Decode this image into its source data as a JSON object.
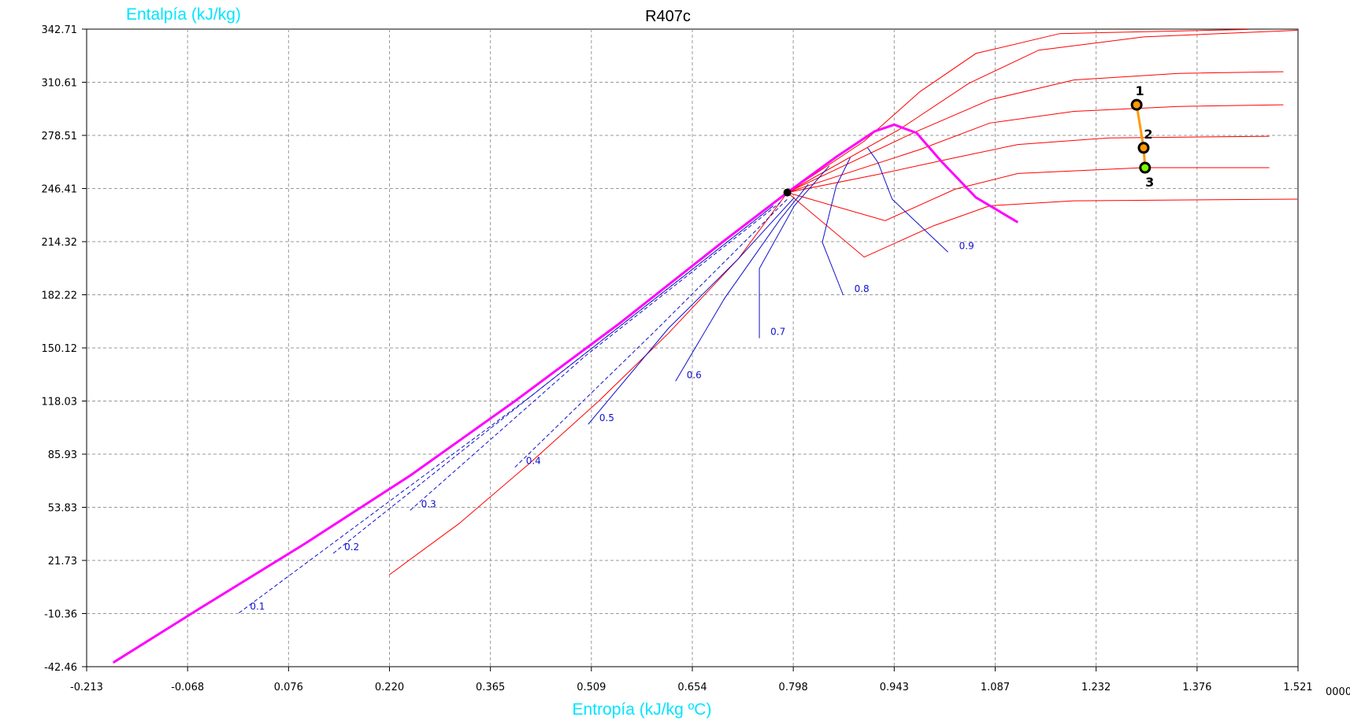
{
  "chart_data": {
    "type": "line",
    "title": "R407c",
    "xlabel": "Entropía (kJ/kg ºC)",
    "ylabel": "Entalpía (kJ/kg)",
    "xlim": [
      -0.213,
      1.521
    ],
    "ylim": [
      -42.46,
      342.71
    ],
    "x_ticks": [
      "-0.213",
      "-0.068",
      "0.076",
      "0.220",
      "0.365",
      "0.509",
      "0.654",
      "0.798",
      "0.943",
      "1.087",
      "1.232",
      "1.376",
      "1.521"
    ],
    "x_tick_suffix": "0000",
    "y_ticks": [
      "342.71",
      "310.61",
      "278.51",
      "246.41",
      "214.32",
      "182.22",
      "150.12",
      "118.03",
      "85.93",
      "53.83",
      "21.73",
      "-10.36",
      "-42.46"
    ],
    "grid": true,
    "colors": {
      "saturation": "#ff00ff",
      "isobar": "#ff0000",
      "quality": "#1010cc",
      "cycle": "#ff9900",
      "axis_title": "#00e5ff"
    },
    "saturation_curve": [
      [
        -0.175,
        -40.0
      ],
      [
        -0.05,
        -7.0
      ],
      [
        0.1,
        32.0
      ],
      [
        0.25,
        73.0
      ],
      [
        0.4,
        118.0
      ],
      [
        0.55,
        165.0
      ],
      [
        0.7,
        215.0
      ],
      [
        0.79,
        244.0
      ],
      [
        0.86,
        265.5
      ],
      [
        0.915,
        281.0
      ],
      [
        0.943,
        285.0
      ],
      [
        0.975,
        280.0
      ],
      [
        1.01,
        263.0
      ],
      [
        1.06,
        241.0
      ],
      [
        1.12,
        226.0
      ]
    ],
    "critical_point": [
      0.79,
      244.0
    ],
    "isobars": [
      [
        [
          0.79,
          244.0
        ],
        [
          0.9,
          275.0
        ],
        [
          0.98,
          305.0
        ],
        [
          1.06,
          328.0
        ],
        [
          1.18,
          340.0
        ],
        [
          1.45,
          342.5
        ]
      ],
      [
        [
          0.79,
          244.0
        ],
        [
          0.95,
          282.0
        ],
        [
          1.05,
          310.0
        ],
        [
          1.15,
          330.0
        ],
        [
          1.3,
          338.0
        ],
        [
          1.52,
          342.0
        ]
      ],
      [
        [
          0.79,
          244.0
        ],
        [
          0.97,
          280.0
        ],
        [
          1.08,
          300.0
        ],
        [
          1.2,
          312.0
        ],
        [
          1.35,
          316.0
        ],
        [
          1.5,
          317.0
        ]
      ],
      [
        [
          0.79,
          244.0
        ],
        [
          0.98,
          270.0
        ],
        [
          1.08,
          286.0
        ],
        [
          1.2,
          293.0
        ],
        [
          1.35,
          296.0
        ],
        [
          1.5,
          297.0
        ]
      ],
      [
        [
          0.79,
          244.0
        ],
        [
          0.92,
          255.0
        ],
        [
          1.03,
          265.0
        ],
        [
          1.12,
          273.0
        ],
        [
          1.25,
          277.0
        ],
        [
          1.48,
          278.0
        ]
      ],
      [
        [
          0.79,
          244.0
        ],
        [
          0.93,
          227.0
        ],
        [
          1.03,
          246.0
        ],
        [
          1.12,
          255.5
        ],
        [
          1.3,
          259.0
        ],
        [
          1.48,
          259.0
        ]
      ],
      [
        [
          0.79,
          244.0
        ],
        [
          0.9,
          205.0
        ],
        [
          1.0,
          224.0
        ],
        [
          1.08,
          236.0
        ],
        [
          1.2,
          239.0
        ],
        [
          1.52,
          240.0
        ]
      ],
      [
        [
          0.79,
          244.0
        ],
        [
          0.72,
          204.0
        ],
        [
          0.62,
          159.0
        ],
        [
          0.52,
          118.0
        ],
        [
          0.42,
          80.0
        ],
        [
          0.32,
          44.0
        ],
        [
          0.22,
          13.0
        ]
      ]
    ],
    "quality_lines": [
      {
        "label": "0.1",
        "points": [
          [
            0.005,
            -10.0
          ],
          [
            0.42,
            120.0
          ],
          [
            0.77,
            236.0
          ]
        ]
      },
      {
        "label": "0.2",
        "points": [
          [
            0.14,
            26.0
          ],
          [
            0.45,
            130.0
          ],
          [
            0.77,
            236.0
          ]
        ]
      },
      {
        "label": "0.3",
        "points": [
          [
            0.25,
            52.0
          ],
          [
            0.5,
            145.0
          ],
          [
            0.78,
            238.0
          ]
        ]
      },
      {
        "label": "0.4",
        "points": [
          [
            0.4,
            78.0
          ],
          [
            0.6,
            160.0
          ],
          [
            0.79,
            240.0
          ]
        ]
      },
      {
        "label": "0.5",
        "points": [
          [
            0.505,
            104.0
          ],
          [
            0.62,
            162.0
          ],
          [
            0.72,
            204.0
          ],
          [
            0.8,
            241.0
          ]
        ]
      },
      {
        "label": "0.6",
        "points": [
          [
            0.63,
            130.0
          ],
          [
            0.7,
            180.0
          ],
          [
            0.78,
            228.0
          ],
          [
            0.82,
            249.0
          ]
        ]
      },
      {
        "label": "0.7",
        "points": [
          [
            0.75,
            156.0
          ],
          [
            0.75,
            198.0
          ],
          [
            0.8,
            236.0
          ],
          [
            0.85,
            260.0
          ]
        ]
      },
      {
        "label": "0.8",
        "points": [
          [
            0.87,
            182.0
          ],
          [
            0.84,
            214.0
          ],
          [
            0.86,
            248.0
          ],
          [
            0.88,
            265.0
          ]
        ]
      },
      {
        "label": "0.9",
        "points": [
          [
            1.02,
            208.0
          ],
          [
            0.94,
            240.0
          ],
          [
            0.92,
            262.0
          ],
          [
            0.905,
            271.0
          ]
        ]
      }
    ],
    "cycle_points": [
      {
        "label": "1",
        "x": 1.29,
        "y": 297.0
      },
      {
        "label": "2",
        "x": 1.3,
        "y": 271.0
      },
      {
        "label": "3",
        "x": 1.302,
        "y": 259.0
      }
    ]
  }
}
